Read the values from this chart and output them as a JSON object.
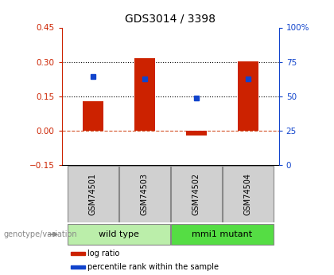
{
  "title": "GDS3014 / 3398",
  "samples": [
    "GSM74501",
    "GSM74503",
    "GSM74502",
    "GSM74504"
  ],
  "log_ratio": [
    0.13,
    0.315,
    -0.022,
    0.302
  ],
  "percentile_rank": [
    0.235,
    0.225,
    0.143,
    0.225
  ],
  "ylim_left": [
    -0.15,
    0.45
  ],
  "yticks_left": [
    -0.15,
    0.0,
    0.15,
    0.3,
    0.45
  ],
  "yticks_right_labels": [
    "0",
    "25",
    "50",
    "75",
    "100%"
  ],
  "yticks_right_vals": [
    0,
    25,
    50,
    75,
    100
  ],
  "hlines_dotted": [
    0.15,
    0.3
  ],
  "hline_dashed_color": "#cc3300",
  "bar_color": "#cc2200",
  "dot_color": "#1144cc",
  "groups": [
    {
      "label": "wild type",
      "indices": [
        0,
        1
      ],
      "color": "#bbeeaa"
    },
    {
      "label": "mmi1 mutant",
      "indices": [
        2,
        3
      ],
      "color": "#55dd44"
    }
  ],
  "left_tick_color": "#cc2200",
  "right_tick_color": "#1144cc",
  "legend_items": [
    {
      "label": "log ratio",
      "color": "#cc2200"
    },
    {
      "label": "percentile rank within the sample",
      "color": "#1144cc"
    }
  ],
  "genotype_label": "genotype/variation",
  "bar_width": 0.4,
  "sample_box_color": "#d0d0d0",
  "background_color": "#ffffff"
}
